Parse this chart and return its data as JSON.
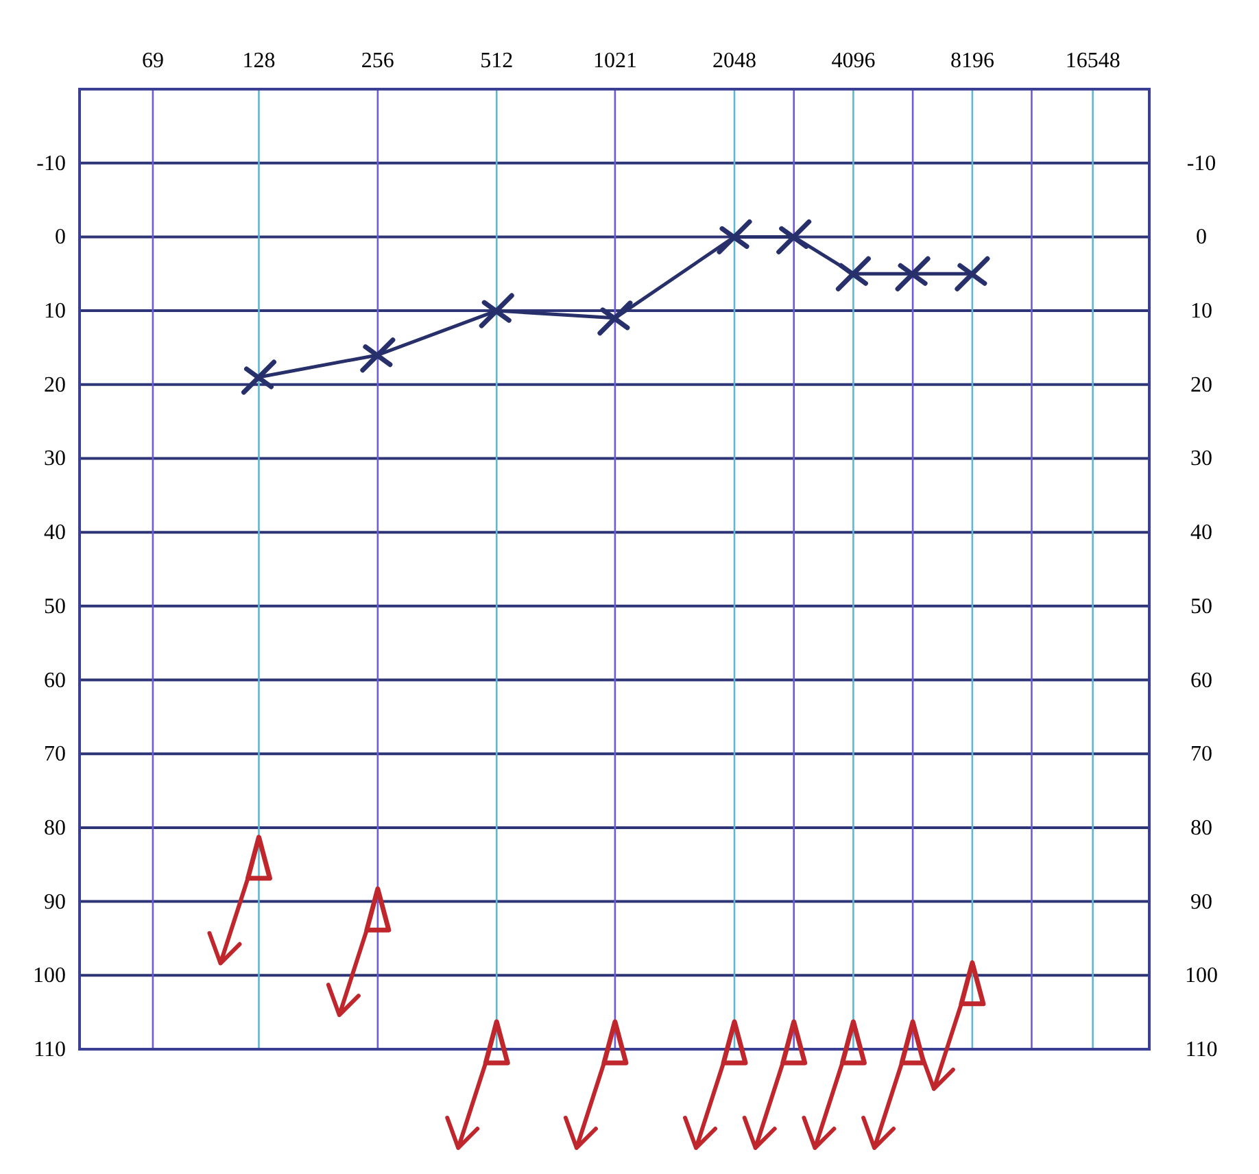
{
  "chart_data": {
    "type": "line",
    "log": "x",
    "grid": true,
    "xlim": [
      45,
      23000
    ],
    "xticks": [
      69,
      128,
      256,
      512,
      1021,
      2048,
      {
        "value": 2896,
        "label": null
      },
      4096,
      {
        "value": 5793,
        "label": null
      },
      8196,
      {
        "value": 11585,
        "label": null
      },
      16548
    ],
    "ylim": [
      110,
      -20
    ],
    "yticks": [
      -10,
      0,
      10,
      20,
      30,
      40,
      50,
      60,
      70,
      80,
      90,
      100,
      110
    ],
    "y2lim": [
      110,
      -20
    ],
    "y2ticks": [
      -10,
      0,
      10,
      20,
      30,
      40,
      50,
      60,
      70,
      80,
      90,
      100,
      110
    ],
    "series": [
      {
        "marker": "cross",
        "color": "#27306b",
        "x": [
          128,
          256,
          512,
          1021,
          2048,
          2896,
          4096,
          5793,
          8196
        ],
        "values": [
          19,
          16,
          10,
          11,
          0,
          0,
          5,
          5,
          5
        ]
      },
      {
        "type": "scatter",
        "marker": "triangle",
        "color": "#c0272d",
        "x": [
          128,
          256,
          512,
          1021,
          2048,
          2896,
          4096,
          5793,
          8196
        ],
        "values": [
          85,
          92,
          110,
          110,
          110,
          110,
          110,
          110,
          102
        ]
      }
    ]
  }
}
